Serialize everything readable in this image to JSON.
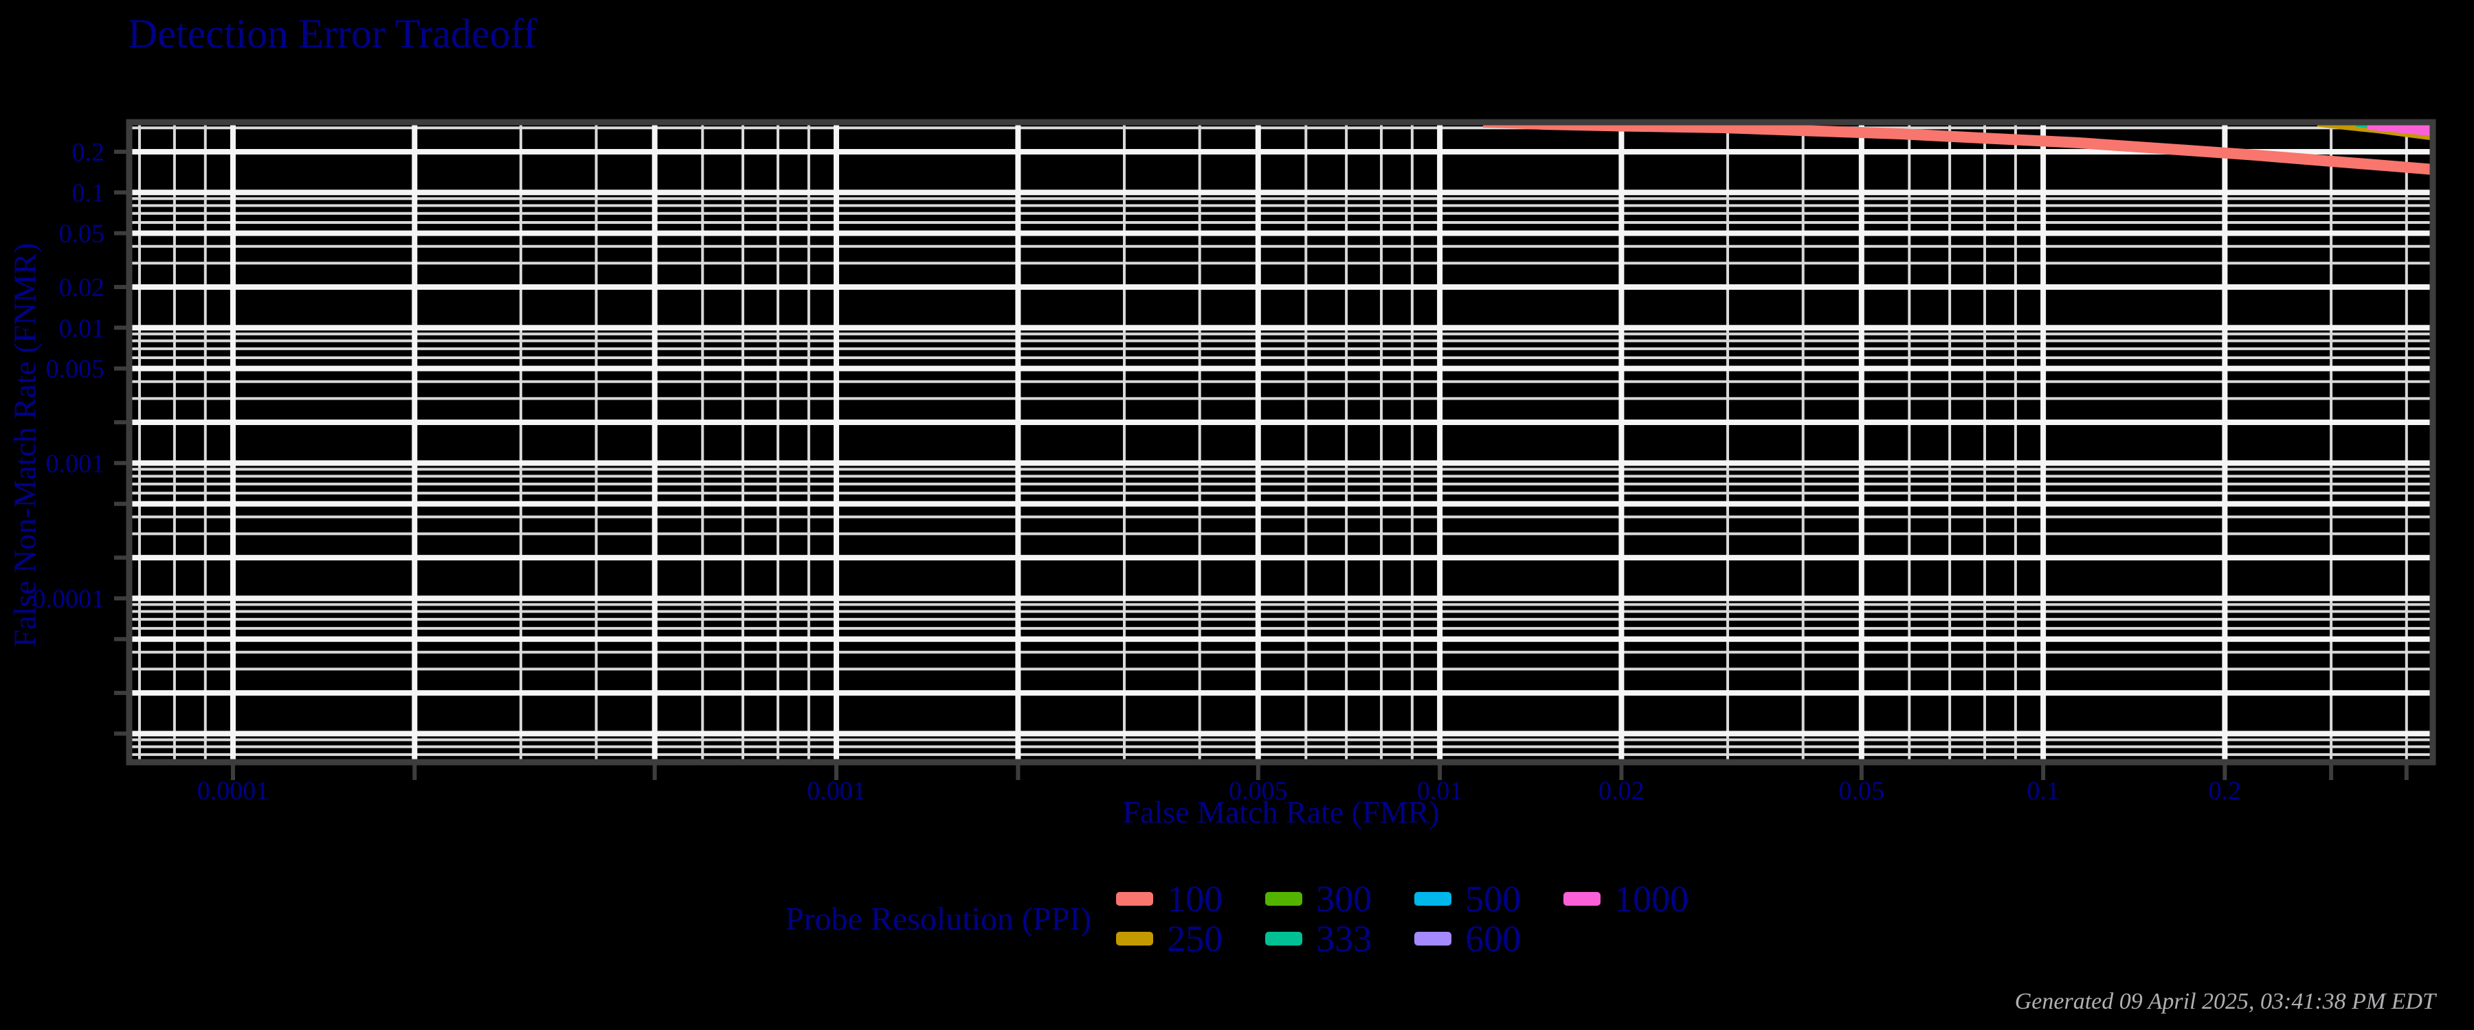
{
  "title": "Detection Error Tradeoff",
  "timestamp": "Generated 09 April 2025, 03:41:38 PM EDT",
  "colors": {
    "background": "#000000",
    "text_accent": "#00008B",
    "timestamp_text": "#b0b0b3",
    "frame": "#3d3d3d",
    "grid_minor": "#d9d9d9",
    "grid_major": "#f5f5f5"
  },
  "chart_data": {
    "type": "line",
    "title": "Detection Error Tradeoff",
    "xlabel": "False Match Rate (FMR)",
    "ylabel": "False Non-Match Rate (FNMR)",
    "xscale": "log",
    "yscale": "log",
    "xlim": [
      6.73e-05,
      0.4422
    ],
    "ylim": [
      6.15e-06,
      0.3306
    ],
    "grid": "on (log minor + major at 1-2-5)",
    "x_ticks": [
      {
        "value": 0.0001,
        "label": "0.0001"
      },
      {
        "value": 0.001,
        "label": "0.001"
      },
      {
        "value": 0.005,
        "label": "0.005"
      },
      {
        "value": 0.01,
        "label": "0.01"
      },
      {
        "value": 0.02,
        "label": "0.02"
      },
      {
        "value": 0.05,
        "label": "0.05"
      },
      {
        "value": 0.1,
        "label": "0.1"
      },
      {
        "value": 0.2,
        "label": "0.2"
      }
    ],
    "y_ticks": [
      {
        "value": 0.2,
        "label": "0.2"
      },
      {
        "value": 0.1,
        "label": "0.1"
      },
      {
        "value": 0.05,
        "label": "0.05"
      },
      {
        "value": 0.02,
        "label": "0.02"
      },
      {
        "value": 0.01,
        "label": "0.01"
      },
      {
        "value": 0.005,
        "label": "0.005"
      },
      {
        "value": 0.001,
        "label": "0.001"
      },
      {
        "value": 0.0001,
        "label": "0.0001"
      }
    ],
    "extra_x_tick_marks": [
      0.3,
      0.4
    ],
    "legend_title": "Probe Resolution (PPI)",
    "legend_position": "bottom-center",
    "series": [
      {
        "name": "100",
        "color": "#F8766D",
        "width": 16,
        "points": [
          [
            0.0118,
            0.331
          ],
          [
            0.013,
            0.327
          ],
          [
            0.015,
            0.319
          ],
          [
            0.02,
            0.31
          ],
          [
            0.0295,
            0.301
          ],
          [
            0.04,
            0.287
          ],
          [
            0.058,
            0.271
          ],
          [
            0.08,
            0.252
          ],
          [
            0.114,
            0.233
          ],
          [
            0.16,
            0.21
          ],
          [
            0.224,
            0.189
          ],
          [
            0.3,
            0.17
          ],
          [
            0.37,
            0.158
          ],
          [
            0.442,
            0.148
          ]
        ]
      },
      {
        "name": "250",
        "color": "#C49A00",
        "width": 13,
        "points": [
          [
            0.285,
            0.331
          ],
          [
            0.32,
            0.312
          ],
          [
            0.36,
            0.295
          ],
          [
            0.4,
            0.277
          ],
          [
            0.442,
            0.262
          ]
        ]
      },
      {
        "name": "300",
        "color": "#53B400",
        "width": 13,
        "points": [
          [
            0.335,
            0.331
          ],
          [
            0.38,
            0.31
          ],
          [
            0.41,
            0.296
          ],
          [
            0.442,
            0.283
          ]
        ]
      },
      {
        "name": "333",
        "color": "#00C094",
        "width": 13,
        "points": [
          [
            0.33,
            0.331
          ],
          [
            0.375,
            0.308
          ],
          [
            0.41,
            0.293
          ],
          [
            0.442,
            0.279
          ]
        ]
      },
      {
        "name": "500",
        "color": "#00B6EB",
        "width": 13,
        "points": [
          [
            0.35,
            0.331
          ],
          [
            0.4,
            0.305
          ],
          [
            0.442,
            0.287
          ]
        ]
      },
      {
        "name": "600",
        "color": "#A58AFF",
        "width": 14,
        "points": [
          [
            0.36,
            0.331
          ],
          [
            0.4,
            0.32
          ],
          [
            0.442,
            0.314
          ]
        ]
      },
      {
        "name": "1000",
        "color": "#FB61D7",
        "width": 22,
        "points": [
          [
            0.345,
            0.331
          ],
          [
            0.39,
            0.314
          ],
          [
            0.42,
            0.304
          ],
          [
            0.442,
            0.296
          ]
        ]
      }
    ]
  }
}
